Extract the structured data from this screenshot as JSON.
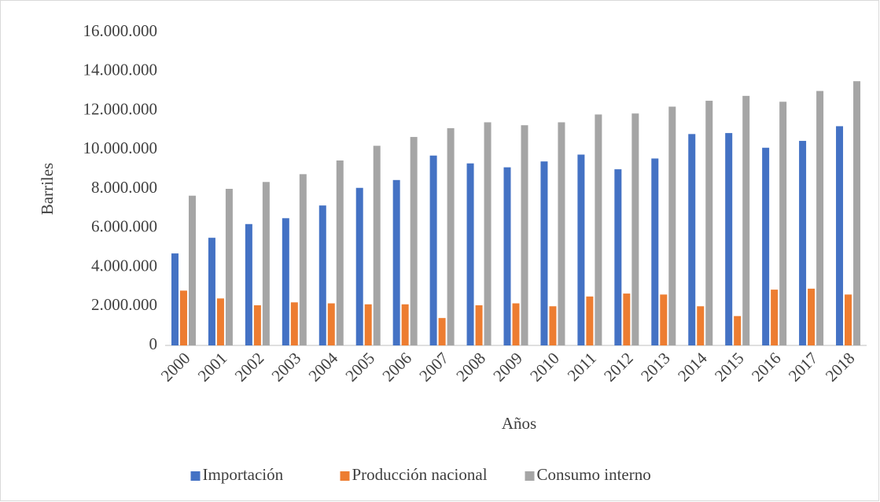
{
  "chart_data": {
    "type": "bar",
    "y_label": "Barriles",
    "x_label": "Años",
    "categories": [
      "2000",
      "2001",
      "2002",
      "2003",
      "2004",
      "2005",
      "2006",
      "2007",
      "2008",
      "2009",
      "2010",
      "2011",
      "2012",
      "2013",
      "2014",
      "2015",
      "2016",
      "2017",
      "2018"
    ],
    "series": [
      {
        "name": "Importación",
        "color": "#4472c4",
        "values": [
          4700000,
          5500000,
          6200000,
          6500000,
          7150000,
          8050000,
          8450000,
          9700000,
          9300000,
          9100000,
          9400000,
          9750000,
          9000000,
          9550000,
          10800000,
          10850000,
          10100000,
          10450000,
          11200000
        ]
      },
      {
        "name": "Producción nacional",
        "color": "#ed7d31",
        "values": [
          2800000,
          2400000,
          2050000,
          2200000,
          2150000,
          2100000,
          2100000,
          1400000,
          2050000,
          2150000,
          2000000,
          2500000,
          2650000,
          2600000,
          2000000,
          1500000,
          2850000,
          2900000,
          2600000
        ]
      },
      {
        "name": "Consumo interno",
        "color": "#a5a5a5",
        "values": [
          7650000,
          8000000,
          8350000,
          8750000,
          9450000,
          10200000,
          10650000,
          11100000,
          11400000,
          11250000,
          11400000,
          11800000,
          11850000,
          12200000,
          12500000,
          12750000,
          12450000,
          13000000,
          13500000
        ]
      }
    ],
    "ylim": [
      0,
      16000000
    ],
    "yticks": [
      0,
      {
        "value": 2000000,
        "label": "2.000.000"
      },
      {
        "value": 4000000,
        "label": "4.000.000"
      },
      {
        "value": 6000000,
        "label": "6.000.000"
      },
      {
        "value": 8000000,
        "label": "8.000.000"
      },
      {
        "value": 10000000,
        "label": "10.000.000"
      },
      {
        "value": 12000000,
        "label": "12.000.000"
      },
      {
        "value": 14000000,
        "label": "14.000.000"
      },
      {
        "value": 16000000,
        "label": "16.000.000"
      }
    ],
    "legend": "bottom",
    "grid": false
  }
}
